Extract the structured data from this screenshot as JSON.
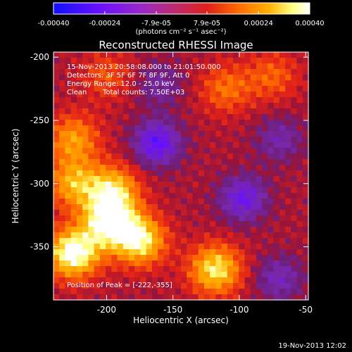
{
  "colorbar": {
    "tick_labels": [
      "-0.00040",
      "-0.00024",
      "-7.9e-05",
      "7.9e-05",
      "0.00024",
      "0.00040"
    ],
    "tick_values": [
      -0.0004,
      -0.00024,
      -7.9e-05,
      7.9e-05,
      0.00024,
      0.0004
    ],
    "range": [
      -0.0004,
      0.0004
    ],
    "units": "(photons cm⁻² s⁻¹ asec⁻²)",
    "colormap": [
      "#1010ff",
      "#6a10ff",
      "#9b2ac2",
      "#c02a6c",
      "#e0201a",
      "#ff6a00",
      "#ffb000",
      "#ffff80",
      "#ffffff"
    ]
  },
  "title": "Reconstructed RHESSI Image",
  "info": {
    "time_range": "15-Nov-2013 20:58:08.000 to 21:01:50.000",
    "detectors": "Detectors: 3F 5F 6F 7F 8F 9F, Att 0",
    "energy": "Energy Range: 12.0 - 25.0 keV",
    "algorithm": "Clean",
    "counts": "Total counts: 7.50E+03",
    "peak": "Position of Peak = [-222,-355]"
  },
  "axes": {
    "xlabel": "Heliocentric X (arcsec)",
    "ylabel": "Heliocentric Y (arcsec)",
    "x_ticks": [
      "-200",
      "-150",
      "-100",
      "-50"
    ],
    "x_tick_values": [
      -200,
      -150,
      -100,
      -50
    ],
    "y_ticks": [
      "-200",
      "-250",
      "-300",
      "-350"
    ],
    "y_tick_values": [
      -200,
      -250,
      -300,
      -350
    ],
    "xlim": [
      -240,
      -48
    ],
    "ylim": [
      -392,
      -196
    ]
  },
  "footer_date": "19-Nov-2013 12:02",
  "map_features": {
    "peak": [
      -222,
      -355
    ],
    "bright_regions": [
      {
        "x": -225,
        "y": -355,
        "level": 1.0
      },
      {
        "x": -198,
        "y": -330,
        "level": 0.95
      },
      {
        "x": -175,
        "y": -345,
        "level": 0.85
      },
      {
        "x": -195,
        "y": -305,
        "level": 0.7
      },
      {
        "x": -225,
        "y": -265,
        "level": 0.55
      },
      {
        "x": -225,
        "y": -300,
        "level": 0.6
      },
      {
        "x": -118,
        "y": -368,
        "level": 0.8
      },
      {
        "x": -110,
        "y": -225,
        "level": 0.4
      },
      {
        "x": -75,
        "y": -215,
        "level": 0.35
      },
      {
        "x": -200,
        "y": -215,
        "level": 0.3
      }
    ],
    "dark_regions": [
      {
        "x": -162,
        "y": -268,
        "level": -0.7
      },
      {
        "x": -97,
        "y": -312,
        "level": -0.6
      },
      {
        "x": -70,
        "y": -265,
        "level": -0.35
      },
      {
        "x": -160,
        "y": -222,
        "level": -0.3
      },
      {
        "x": -70,
        "y": -375,
        "level": -0.4
      }
    ]
  }
}
